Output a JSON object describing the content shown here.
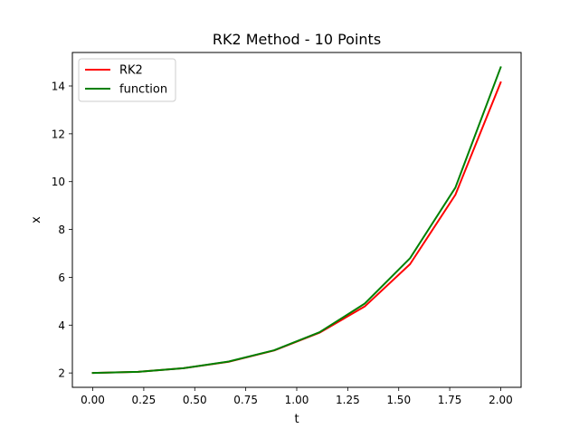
{
  "chart_data": {
    "type": "line",
    "title": "RK2 Method - 10 Points",
    "xlabel": "t",
    "ylabel": "x",
    "xlim": [
      -0.1,
      2.1
    ],
    "ylim": [
      1.4,
      15.4
    ],
    "xticks": [
      0.0,
      0.25,
      0.5,
      0.75,
      1.0,
      1.25,
      1.5,
      1.75,
      2.0
    ],
    "xtick_labels": [
      "0.00",
      "0.25",
      "0.50",
      "0.75",
      "1.00",
      "1.25",
      "1.50",
      "1.75",
      "2.00"
    ],
    "yticks": [
      2,
      4,
      6,
      8,
      10,
      12,
      14
    ],
    "ytick_labels": [
      "2",
      "4",
      "6",
      "8",
      "10",
      "12",
      "14"
    ],
    "grid": false,
    "legend_position": "upper-left",
    "series": [
      {
        "name": "RK2",
        "color": "#ff0000",
        "x": [
          0.0,
          0.2222,
          0.4444,
          0.6667,
          0.8889,
          1.1111,
          1.3333,
          1.5556,
          1.7778,
          2.0
        ],
        "y": [
          2.0,
          2.05,
          2.2,
          2.47,
          2.94,
          3.68,
          4.78,
          6.55,
          9.45,
          14.15
        ]
      },
      {
        "name": "function",
        "color": "#008000",
        "x": [
          0.0,
          0.2222,
          0.4444,
          0.6667,
          0.8889,
          1.1111,
          1.3333,
          1.5556,
          1.7778,
          2.0
        ],
        "y": [
          2.0,
          2.05,
          2.2,
          2.48,
          2.95,
          3.7,
          4.9,
          6.8,
          9.75,
          14.78
        ]
      }
    ]
  }
}
